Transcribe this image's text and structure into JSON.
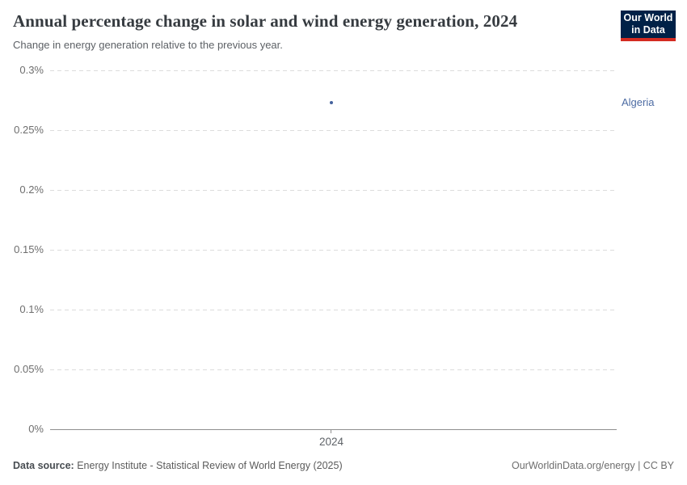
{
  "header": {
    "title": "Annual percentage change in solar and wind energy generation, 2024",
    "subtitle": "Change in energy generation relative to the previous year."
  },
  "logo": {
    "line1": "Our World",
    "line2": "in Data",
    "bg_color": "#002147",
    "accent_color": "#d42b21"
  },
  "chart_data": {
    "type": "scatter",
    "title": "Annual percentage change in solar and wind energy generation, 2024",
    "x": [
      2024
    ],
    "series": [
      {
        "name": "Algeria",
        "values": [
          0.273
        ],
        "color": "#44639e",
        "label_color": "#4c6ba3"
      }
    ],
    "ylim": [
      0,
      0.3
    ],
    "y_ticks": [
      {
        "value": 0,
        "label": "0%"
      },
      {
        "value": 0.05,
        "label": "0.05%"
      },
      {
        "value": 0.1,
        "label": "0.1%"
      },
      {
        "value": 0.15,
        "label": "0.15%"
      },
      {
        "value": 0.2,
        "label": "0.2%"
      },
      {
        "value": 0.25,
        "label": "0.25%"
      },
      {
        "value": 0.3,
        "label": "0.3%"
      }
    ],
    "x_ticks": [
      {
        "label": "2024",
        "frac": 0.4964
      }
    ],
    "grid": "dashed-horizontal",
    "legend_position": "right-of-point"
  },
  "footer": {
    "datasource_label": "Data source:",
    "datasource_text": "Energy Institute - Statistical Review of World Energy (2025)",
    "credit": "OurWorldinData.org/energy | CC BY"
  }
}
